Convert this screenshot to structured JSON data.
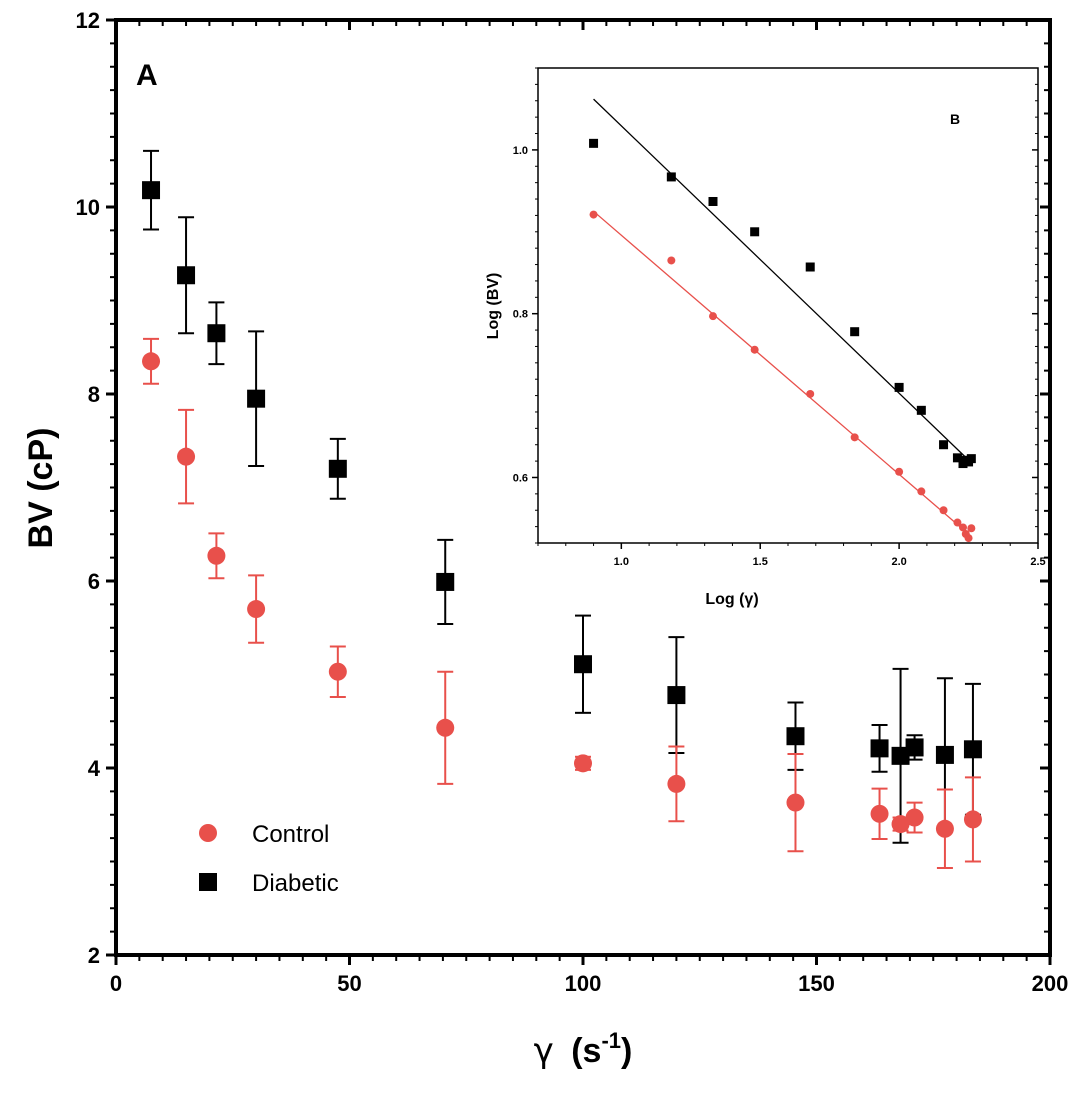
{
  "colors": {
    "control": "#e8504b",
    "diabetic": "#000000",
    "axis": "#000000"
  },
  "legend": {
    "control_label": "Control",
    "diabetic_label": "Diabetic",
    "control_icon": "red-circle-marker",
    "diabetic_icon": "black-square-marker"
  },
  "chart_data": [
    {
      "type": "scatter",
      "panel": "A",
      "xlabel_symbol": "γ",
      "xlabel_unit": "(s",
      "xlabel_sup": "-1",
      "xlabel_close": ")",
      "ylabel": "BV (cP)",
      "xlim": [
        0,
        200
      ],
      "ylim": [
        2,
        12
      ],
      "x_ticks": [
        "0",
        "50",
        "100",
        "150",
        "200"
      ],
      "y_ticks": [
        "2",
        "4",
        "6",
        "8",
        "10",
        "12"
      ],
      "series": [
        {
          "name": "Control",
          "marker": "circle",
          "x": [
            7.5,
            15,
            21.5,
            30,
            47.5,
            70.5,
            100,
            120,
            145.5,
            163.5,
            168,
            171,
            177.5,
            183.5
          ],
          "y": [
            8.35,
            7.33,
            6.27,
            5.7,
            5.03,
            4.43,
            4.05,
            3.83,
            3.63,
            3.51,
            3.4,
            3.47,
            3.35,
            3.45
          ],
          "err": [
            0.24,
            0.5,
            0.24,
            0.36,
            0.27,
            0.6,
            0.07,
            0.4,
            0.52,
            0.27,
            0.07,
            0.16,
            0.42,
            0.45
          ]
        },
        {
          "name": "Diabetic",
          "marker": "square",
          "x": [
            7.5,
            15,
            21.5,
            30,
            47.5,
            70.5,
            100,
            120,
            145.5,
            163.5,
            168,
            171,
            177.5,
            183.5
          ],
          "y": [
            10.18,
            9.27,
            8.65,
            7.95,
            7.2,
            5.99,
            5.11,
            4.78,
            4.34,
            4.21,
            4.13,
            4.22,
            4.14,
            4.2
          ],
          "err": [
            0.42,
            0.62,
            0.33,
            0.72,
            0.32,
            0.45,
            0.52,
            0.62,
            0.36,
            0.25,
            0.93,
            0.13,
            0.82,
            0.7
          ]
        }
      ]
    },
    {
      "type": "scatter",
      "panel": "B",
      "xlabel": "Log (γ)",
      "ylabel": "Log (BV)",
      "xlim": [
        0.7,
        2.5
      ],
      "ylim": [
        0.52,
        1.1
      ],
      "x_ticks": [
        "1.0",
        "1.5",
        "2.0",
        "2.5"
      ],
      "y_ticks": [
        "0.6",
        "0.8",
        "1.0"
      ],
      "series": [
        {
          "name": "Control",
          "marker": "circle",
          "x": [
            0.9,
            1.18,
            1.33,
            1.48,
            1.68,
            1.84,
            2.0,
            2.08,
            2.16,
            2.21,
            2.23,
            2.24,
            2.25,
            2.26
          ],
          "y": [
            0.921,
            0.865,
            0.797,
            0.756,
            0.702,
            0.649,
            0.607,
            0.583,
            0.56,
            0.545,
            0.539,
            0.531,
            0.526,
            0.538
          ],
          "fit": {
            "x": [
              0.9,
              2.26
            ],
            "y": [
              0.925,
              0.528
            ]
          }
        },
        {
          "name": "Diabetic",
          "marker": "square",
          "x": [
            0.9,
            1.18,
            1.33,
            1.48,
            1.68,
            1.84,
            2.0,
            2.08,
            2.16,
            2.21,
            2.23,
            2.24,
            2.25,
            2.26
          ],
          "y": [
            1.008,
            0.967,
            0.937,
            0.9,
            0.857,
            0.778,
            0.71,
            0.682,
            0.64,
            0.624,
            0.617,
            0.621,
            0.619,
            0.623
          ],
          "fit": {
            "x": [
              0.9,
              2.26
            ],
            "y": [
              1.062,
              0.618
            ]
          }
        }
      ]
    }
  ]
}
